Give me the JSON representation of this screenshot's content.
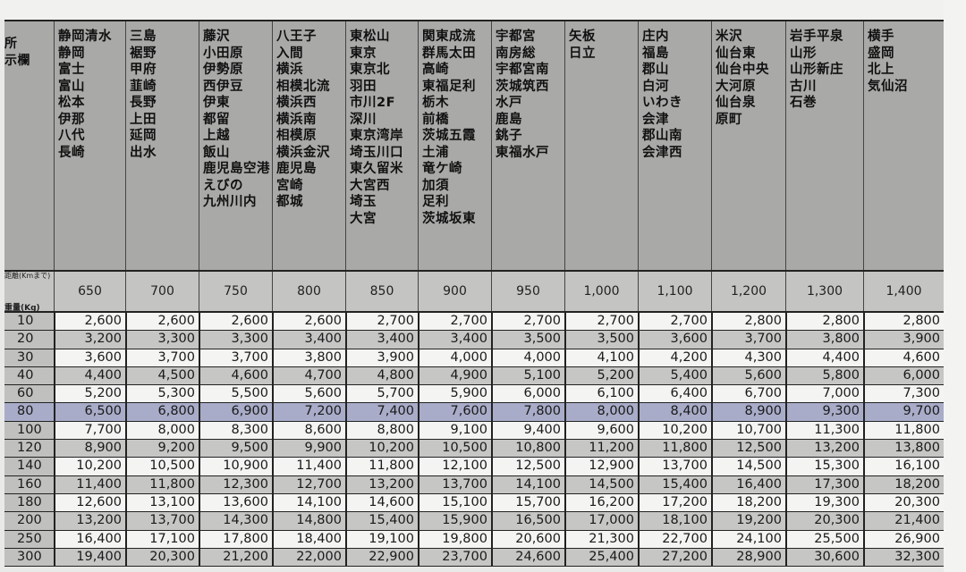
{
  "label_column": {
    "header_lines": [
      "所",
      "示欄"
    ],
    "distance_label": "距離(Kmまで)",
    "weight_label": "重量(Kg)"
  },
  "columns": [
    {
      "distance": "650",
      "places": [
        "静岡清水",
        "静岡",
        "富士",
        "富山",
        "松本",
        "伊那",
        "八代",
        "長崎"
      ]
    },
    {
      "distance": "700",
      "places": [
        "三島",
        "裾野",
        "甲府",
        "韮崎",
        "長野",
        "上田",
        "延岡",
        "出水"
      ]
    },
    {
      "distance": "750",
      "places": [
        "藤沢",
        "小田原",
        "伊勢原",
        "西伊豆",
        "伊東",
        "都留",
        "上越",
        "飯山",
        "鹿児島空港",
        "えびの",
        "九州川内"
      ]
    },
    {
      "distance": "800",
      "places": [
        "八王子",
        "入間",
        "横浜",
        "相模北流",
        "横浜西",
        "横浜南",
        "相模原",
        "横浜金沢",
        "鹿児島",
        "宮崎",
        "都城"
      ]
    },
    {
      "distance": "850",
      "places": [
        "東松山",
        "東京",
        "東京北",
        "羽田",
        "市川2F",
        "深川",
        "東京湾岸",
        "埼玉川口",
        "東久留米",
        "大宮西",
        "埼玉",
        "大宮"
      ]
    },
    {
      "distance": "900",
      "places": [
        "関東成流",
        "群馬太田",
        "高崎",
        "東福足利",
        "栃木",
        "前橋",
        "茨城五霞",
        "土浦",
        "竜ケ崎",
        "加須",
        "足利",
        "茨城坂東"
      ]
    },
    {
      "distance": "950",
      "places": [
        "宇都宮",
        "南房総",
        "宇都宮南",
        "茨城筑西",
        "水戸",
        "鹿島",
        "銚子",
        "東福水戸"
      ]
    },
    {
      "distance": "1,000",
      "places": [
        "矢板",
        "日立"
      ]
    },
    {
      "distance": "1,100",
      "places": [
        "庄内",
        "福島",
        "郡山",
        "白河",
        "いわき",
        "会津",
        "郡山南",
        "会津西"
      ]
    },
    {
      "distance": "1,200",
      "places": [
        "米沢",
        "仙台東",
        "仙台中央",
        "大河原",
        "仙台泉",
        "原町"
      ]
    },
    {
      "distance": "1,300",
      "places": [
        "岩手平泉",
        "山形",
        "山形新庄",
        "古川",
        "石巻"
      ]
    },
    {
      "distance": "1,400",
      "places": [
        "横手",
        "盛岡",
        "北上",
        "気仙沼"
      ]
    }
  ],
  "rows": [
    {
      "weight": "10",
      "prices": [
        "2,600",
        "2,600",
        "2,600",
        "2,600",
        "2,700",
        "2,700",
        "2,700",
        "2,700",
        "2,700",
        "2,800",
        "2,800",
        "2,800"
      ]
    },
    {
      "weight": "20",
      "prices": [
        "3,200",
        "3,300",
        "3,300",
        "3,400",
        "3,400",
        "3,400",
        "3,500",
        "3,500",
        "3,600",
        "3,700",
        "3,800",
        "3,900"
      ]
    },
    {
      "weight": "30",
      "prices": [
        "3,600",
        "3,700",
        "3,700",
        "3,800",
        "3,900",
        "4,000",
        "4,000",
        "4,100",
        "4,200",
        "4,300",
        "4,400",
        "4,600"
      ]
    },
    {
      "weight": "40",
      "prices": [
        "4,400",
        "4,500",
        "4,600",
        "4,700",
        "4,800",
        "4,900",
        "5,100",
        "5,200",
        "5,400",
        "5,600",
        "5,800",
        "6,000"
      ]
    },
    {
      "weight": "60",
      "prices": [
        "5,200",
        "5,300",
        "5,500",
        "5,600",
        "5,700",
        "5,900",
        "6,000",
        "6,100",
        "6,400",
        "6,700",
        "7,000",
        "7,300"
      ]
    },
    {
      "weight": "80",
      "highlighted": true,
      "prices": [
        "6,500",
        "6,800",
        "6,900",
        "7,200",
        "7,400",
        "7,600",
        "7,800",
        "8,000",
        "8,400",
        "8,900",
        "9,300",
        "9,700"
      ]
    },
    {
      "weight": "100",
      "prices": [
        "7,700",
        "8,000",
        "8,300",
        "8,600",
        "8,800",
        "9,100",
        "9,400",
        "9,600",
        "10,200",
        "10,700",
        "11,300",
        "11,800"
      ]
    },
    {
      "weight": "120",
      "prices": [
        "8,900",
        "9,200",
        "9,500",
        "9,900",
        "10,200",
        "10,500",
        "10,800",
        "11,200",
        "11,800",
        "12,500",
        "13,200",
        "13,800"
      ]
    },
    {
      "weight": "140",
      "prices": [
        "10,200",
        "10,500",
        "10,900",
        "11,400",
        "11,800",
        "12,100",
        "12,500",
        "12,900",
        "13,700",
        "14,500",
        "15,300",
        "16,100"
      ]
    },
    {
      "weight": "160",
      "prices": [
        "11,400",
        "11,800",
        "12,300",
        "12,700",
        "13,200",
        "13,700",
        "14,100",
        "14,500",
        "15,400",
        "16,400",
        "17,300",
        "18,200"
      ]
    },
    {
      "weight": "180",
      "prices": [
        "12,600",
        "13,100",
        "13,600",
        "14,100",
        "14,600",
        "15,100",
        "15,700",
        "16,200",
        "17,200",
        "18,200",
        "19,300",
        "20,300"
      ]
    },
    {
      "weight": "200",
      "prices": [
        "13,200",
        "13,700",
        "14,300",
        "14,800",
        "15,400",
        "15,900",
        "16,500",
        "17,000",
        "18,100",
        "19,200",
        "20,300",
        "21,400"
      ]
    },
    {
      "weight": "250",
      "prices": [
        "16,400",
        "17,100",
        "17,800",
        "18,400",
        "19,100",
        "19,800",
        "20,600",
        "21,300",
        "22,700",
        "24,100",
        "25,500",
        "26,900"
      ]
    },
    {
      "weight": "300",
      "prices": [
        "19,400",
        "20,300",
        "21,200",
        "22,000",
        "22,900",
        "23,700",
        "24,600",
        "25,400",
        "27,200",
        "28,900",
        "30,600",
        "32,300"
      ]
    }
  ],
  "colors": {
    "header_gray": "#a9a9a7",
    "highlight_marker": "#a9acc8"
  }
}
